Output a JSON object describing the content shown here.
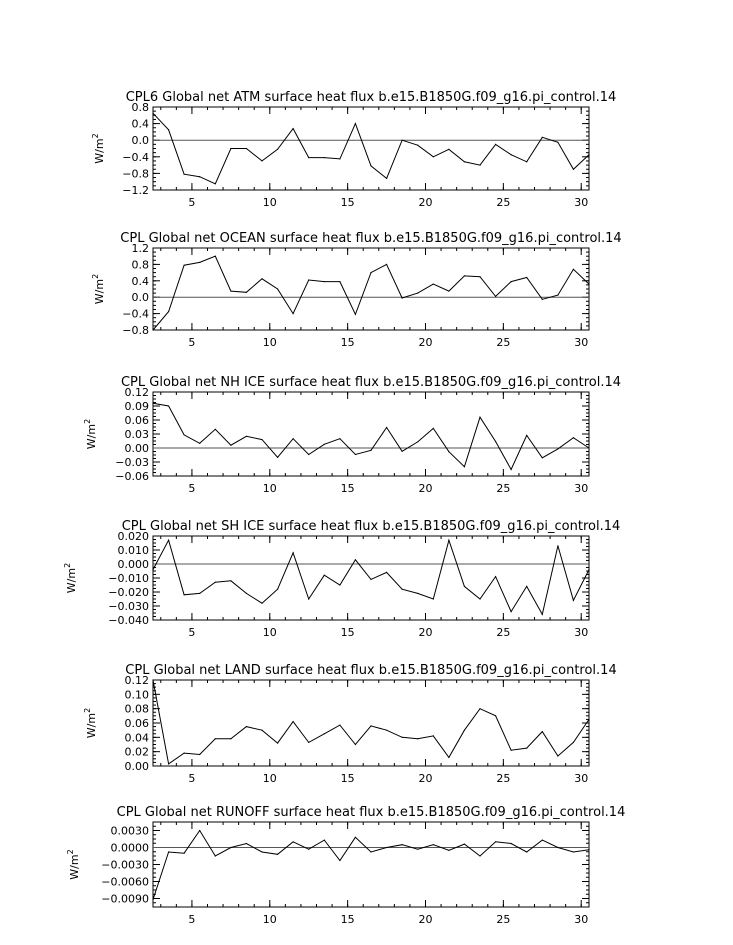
{
  "chart_data": [
    {
      "type": "line",
      "title": "CPL6 Global net ATM surface heat flux b.e15.B1850G.f09_g16.pi_control.14",
      "ylabel": "W/m",
      "ylabel_sup": "2",
      "xlim": [
        2.5,
        30.5
      ],
      "ylim": [
        -1.2,
        0.8
      ],
      "xticks": [
        5,
        10,
        15,
        20,
        25,
        30
      ],
      "xtick_labels": [
        "5",
        "10",
        "15",
        "20",
        "25",
        "30"
      ],
      "yticks": [
        -1.2,
        -0.8,
        -0.4,
        0.0,
        0.4,
        0.8
      ],
      "ytick_labels": [
        "−1.2",
        "−0.8",
        "−0.4",
        "0.0",
        "0.4",
        "0.8"
      ],
      "zero_line": true,
      "x": [
        2.5,
        3.5,
        4.5,
        5.5,
        6.5,
        7.5,
        8.5,
        9.5,
        10.5,
        11.5,
        12.5,
        13.5,
        14.5,
        15.5,
        16.5,
        17.5,
        18.5,
        19.5,
        20.5,
        21.5,
        22.5,
        23.5,
        24.5,
        25.5,
        26.5,
        27.5,
        28.5,
        29.5,
        30.5
      ],
      "values": [
        0.65,
        0.25,
        -0.82,
        -0.88,
        -1.05,
        -0.2,
        -0.2,
        -0.5,
        -0.22,
        0.28,
        -0.42,
        -0.42,
        -0.45,
        0.4,
        -0.62,
        -0.92,
        0.0,
        -0.12,
        -0.4,
        -0.22,
        -0.52,
        -0.6,
        -0.1,
        -0.35,
        -0.52,
        0.07,
        -0.05,
        -0.7,
        -0.35
      ]
    },
    {
      "type": "line",
      "title": "CPL Global net OCEAN surface heat flux b.e15.B1850G.f09_g16.pi_control.14",
      "ylabel": "W/m",
      "ylabel_sup": "2",
      "xlim": [
        2.5,
        30.5
      ],
      "ylim": [
        -0.8,
        1.2
      ],
      "xticks": [
        5,
        10,
        15,
        20,
        25,
        30
      ],
      "xtick_labels": [
        "5",
        "10",
        "15",
        "20",
        "25",
        "30"
      ],
      "yticks": [
        -0.8,
        -0.4,
        0.0,
        0.4,
        0.8,
        1.2
      ],
      "ytick_labels": [
        "−0.8",
        "−0.4",
        "0.0",
        "0.4",
        "0.8",
        "1.2"
      ],
      "zero_line": true,
      "x": [
        2.5,
        3.5,
        4.5,
        5.5,
        6.5,
        7.5,
        8.5,
        9.5,
        10.5,
        11.5,
        12.5,
        13.5,
        14.5,
        15.5,
        16.5,
        17.5,
        18.5,
        19.5,
        20.5,
        21.5,
        22.5,
        23.5,
        24.5,
        25.5,
        26.5,
        27.5,
        28.5,
        29.5,
        30.5
      ],
      "values": [
        -0.8,
        -0.35,
        0.78,
        0.85,
        1.0,
        0.15,
        0.12,
        0.45,
        0.2,
        -0.4,
        0.42,
        0.38,
        0.38,
        -0.42,
        0.6,
        0.8,
        -0.02,
        0.1,
        0.32,
        0.15,
        0.52,
        0.5,
        0.02,
        0.38,
        0.48,
        -0.05,
        0.05,
        0.68,
        0.32
      ]
    },
    {
      "type": "line",
      "title": "CPL Global net NH ICE surface heat flux b.e15.B1850G.f09_g16.pi_control.14",
      "ylabel": "W/m",
      "ylabel_sup": "2",
      "xlim": [
        2.5,
        30.5
      ],
      "ylim": [
        -0.06,
        0.12
      ],
      "xticks": [
        5,
        10,
        15,
        20,
        25,
        30
      ],
      "xtick_labels": [
        "5",
        "10",
        "15",
        "20",
        "25",
        "30"
      ],
      "yticks": [
        -0.06,
        -0.03,
        0.0,
        0.03,
        0.06,
        0.09,
        0.12
      ],
      "ytick_labels": [
        "−0.06",
        "−0.03",
        "0.00",
        "0.03",
        "0.06",
        "0.09",
        "0.12"
      ],
      "zero_line": true,
      "x": [
        2.5,
        3.5,
        4.5,
        5.5,
        6.5,
        7.5,
        8.5,
        9.5,
        10.5,
        11.5,
        12.5,
        13.5,
        14.5,
        15.5,
        16.5,
        17.5,
        18.5,
        19.5,
        20.5,
        21.5,
        22.5,
        23.5,
        24.5,
        25.5,
        26.5,
        27.5,
        28.5,
        29.5,
        30.5
      ],
      "values": [
        0.096,
        0.09,
        0.028,
        0.01,
        0.04,
        0.006,
        0.025,
        0.018,
        -0.02,
        0.02,
        -0.014,
        0.008,
        0.02,
        -0.014,
        -0.005,
        0.044,
        -0.007,
        0.013,
        0.042,
        -0.008,
        -0.04,
        0.066,
        0.014,
        -0.046,
        0.027,
        -0.021,
        -0.002,
        0.022,
        0.0
      ]
    },
    {
      "type": "line",
      "title": "CPL Global net SH ICE surface heat flux b.e15.B1850G.f09_g16.pi_control.14",
      "ylabel": "W/m",
      "ylabel_sup": "2",
      "xlim": [
        2.5,
        30.5
      ],
      "ylim": [
        -0.04,
        0.02
      ],
      "xticks": [
        5,
        10,
        15,
        20,
        25,
        30
      ],
      "xtick_labels": [
        "5",
        "10",
        "15",
        "20",
        "25",
        "30"
      ],
      "yticks": [
        -0.04,
        -0.03,
        -0.02,
        -0.01,
        0.0,
        0.01,
        0.02
      ],
      "ytick_labels": [
        "−0.040",
        "−0.030",
        "−0.020",
        "−0.010",
        "0.000",
        "0.010",
        "0.020"
      ],
      "zero_line": true,
      "x": [
        2.5,
        3.5,
        4.5,
        5.5,
        6.5,
        7.5,
        8.5,
        9.5,
        10.5,
        11.5,
        12.5,
        13.5,
        14.5,
        15.5,
        16.5,
        17.5,
        18.5,
        19.5,
        20.5,
        21.5,
        22.5,
        23.5,
        24.5,
        25.5,
        26.5,
        27.5,
        28.5,
        29.5,
        30.5
      ],
      "values": [
        -0.004,
        0.017,
        -0.022,
        -0.021,
        -0.013,
        -0.012,
        -0.021,
        -0.028,
        -0.018,
        0.008,
        -0.025,
        -0.008,
        -0.015,
        0.003,
        -0.011,
        -0.006,
        -0.018,
        -0.021,
        -0.025,
        0.017,
        -0.016,
        -0.025,
        -0.009,
        -0.034,
        -0.016,
        -0.036,
        0.013,
        -0.026,
        -0.004
      ]
    },
    {
      "type": "line",
      "title": "CPL Global net LAND surface heat flux b.e15.B1850G.f09_g16.pi_control.14",
      "ylabel": "W/m",
      "ylabel_sup": "2",
      "xlim": [
        2.5,
        30.5
      ],
      "ylim": [
        0.0,
        0.12
      ],
      "xticks": [
        5,
        10,
        15,
        20,
        25,
        30
      ],
      "xtick_labels": [
        "5",
        "10",
        "15",
        "20",
        "25",
        "30"
      ],
      "yticks": [
        0.0,
        0.02,
        0.04,
        0.06,
        0.08,
        0.1,
        0.12
      ],
      "ytick_labels": [
        "0.00",
        "0.02",
        "0.04",
        "0.06",
        "0.08",
        "0.10",
        "0.12"
      ],
      "zero_line": false,
      "x": [
        2.5,
        3.5,
        4.5,
        5.5,
        6.5,
        7.5,
        8.5,
        9.5,
        10.5,
        11.5,
        12.5,
        13.5,
        14.5,
        15.5,
        16.5,
        17.5,
        18.5,
        19.5,
        20.5,
        21.5,
        22.5,
        23.5,
        24.5,
        25.5,
        26.5,
        27.5,
        28.5,
        29.5,
        30.5
      ],
      "values": [
        0.12,
        0.003,
        0.018,
        0.016,
        0.038,
        0.038,
        0.055,
        0.05,
        0.032,
        0.062,
        0.033,
        0.045,
        0.057,
        0.03,
        0.056,
        0.05,
        0.04,
        0.038,
        0.042,
        0.012,
        0.05,
        0.08,
        0.07,
        0.022,
        0.025,
        0.048,
        0.014,
        0.033,
        0.065
      ]
    },
    {
      "type": "line",
      "title": "CPL Global net RUNOFF surface heat flux b.e15.B1850G.f09_g16.pi_control.14",
      "ylabel": "W/m",
      "ylabel_sup": "2",
      "xlim": [
        2.5,
        30.5
      ],
      "ylim": [
        -0.0105,
        0.0045
      ],
      "xticks": [
        5,
        10,
        15,
        20,
        25,
        30
      ],
      "xtick_labels": [
        "5",
        "10",
        "15",
        "20",
        "25",
        "30"
      ],
      "yticks": [
        -0.009,
        -0.006,
        -0.003,
        0.0,
        0.003
      ],
      "ytick_labels": [
        "−0.0090",
        "−0.0060",
        "−0.0030",
        "0.0000",
        "0.0030"
      ],
      "zero_line": true,
      "x": [
        2.5,
        3.5,
        4.5,
        5.5,
        6.5,
        7.5,
        8.5,
        9.5,
        10.5,
        11.5,
        12.5,
        13.5,
        14.5,
        15.5,
        16.5,
        17.5,
        18.5,
        19.5,
        20.5,
        21.5,
        22.5,
        23.5,
        24.5,
        25.5,
        26.5,
        27.5,
        28.5,
        29.5,
        30.5
      ],
      "values": [
        -0.0092,
        -0.0008,
        -0.001,
        0.003,
        -0.0015,
        0.0,
        0.0007,
        -0.0008,
        -0.0012,
        0.001,
        -0.0003,
        0.0013,
        -0.0023,
        0.0018,
        -0.0008,
        0.0,
        0.0005,
        -0.0003,
        0.0005,
        -0.0005,
        0.0006,
        -0.0015,
        0.001,
        0.0007,
        -0.0008,
        0.0013,
        0.0,
        -0.0008,
        -0.0004
      ]
    }
  ]
}
